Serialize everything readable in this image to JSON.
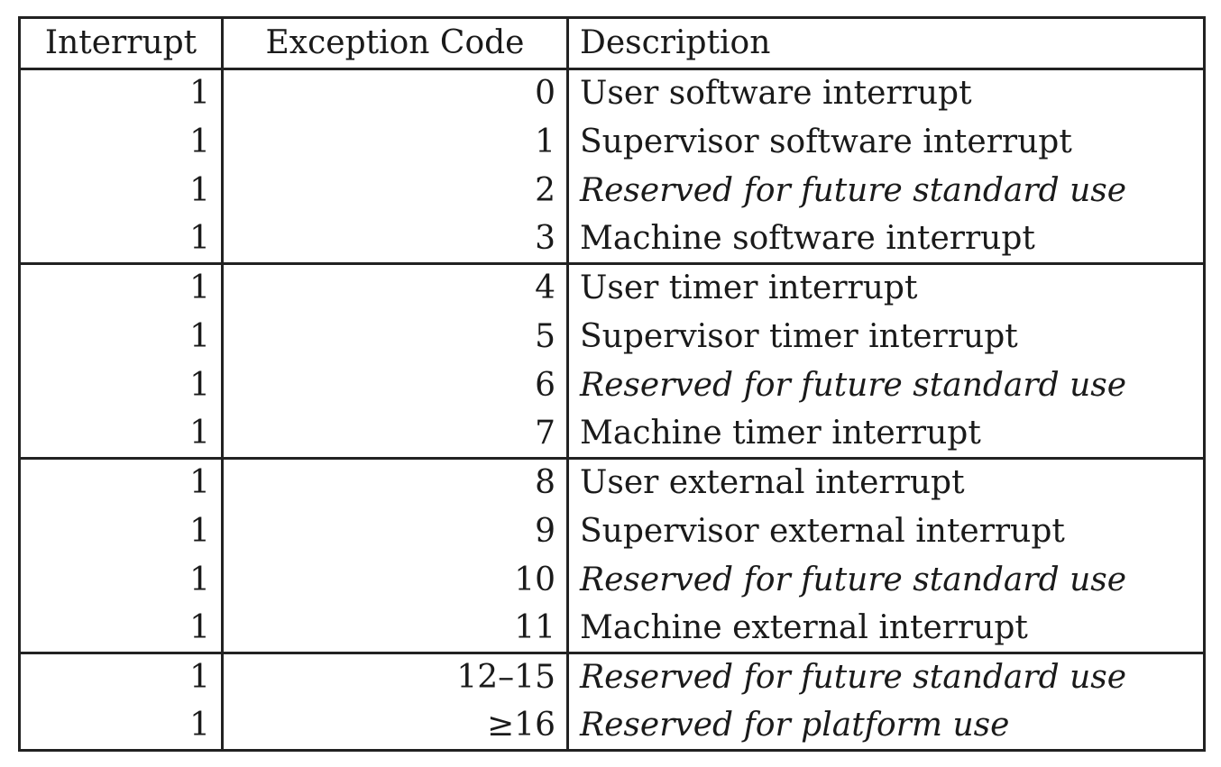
{
  "table": {
    "headers": {
      "interrupt": "Interrupt",
      "exception_code": "Exception Code",
      "description": "Description"
    },
    "rows": [
      {
        "interrupt": "1",
        "code": "0",
        "description": "User software interrupt",
        "italic": false
      },
      {
        "interrupt": "1",
        "code": "1",
        "description": "Supervisor software interrupt",
        "italic": false
      },
      {
        "interrupt": "1",
        "code": "2",
        "description": "Reserved for future standard use",
        "italic": true
      },
      {
        "interrupt": "1",
        "code": "3",
        "description": "Machine software interrupt",
        "italic": false
      },
      {
        "interrupt": "1",
        "code": "4",
        "description": "User timer interrupt",
        "italic": false
      },
      {
        "interrupt": "1",
        "code": "5",
        "description": "Supervisor timer interrupt",
        "italic": false
      },
      {
        "interrupt": "1",
        "code": "6",
        "description": "Reserved for future standard use",
        "italic": true
      },
      {
        "interrupt": "1",
        "code": "7",
        "description": "Machine timer interrupt",
        "italic": false
      },
      {
        "interrupt": "1",
        "code": "8",
        "description": "User external interrupt",
        "italic": false
      },
      {
        "interrupt": "1",
        "code": "9",
        "description": "Supervisor external interrupt",
        "italic": false
      },
      {
        "interrupt": "1",
        "code": "10",
        "description": "Reserved for future standard use",
        "italic": true
      },
      {
        "interrupt": "1",
        "code": "11",
        "description": "Machine external interrupt",
        "italic": false
      },
      {
        "interrupt": "1",
        "code": "12–15",
        "description": "Reserved for future standard use",
        "italic": true
      },
      {
        "interrupt": "1",
        "code": "≥16",
        "description": "Reserved for platform use",
        "italic": true
      }
    ]
  }
}
